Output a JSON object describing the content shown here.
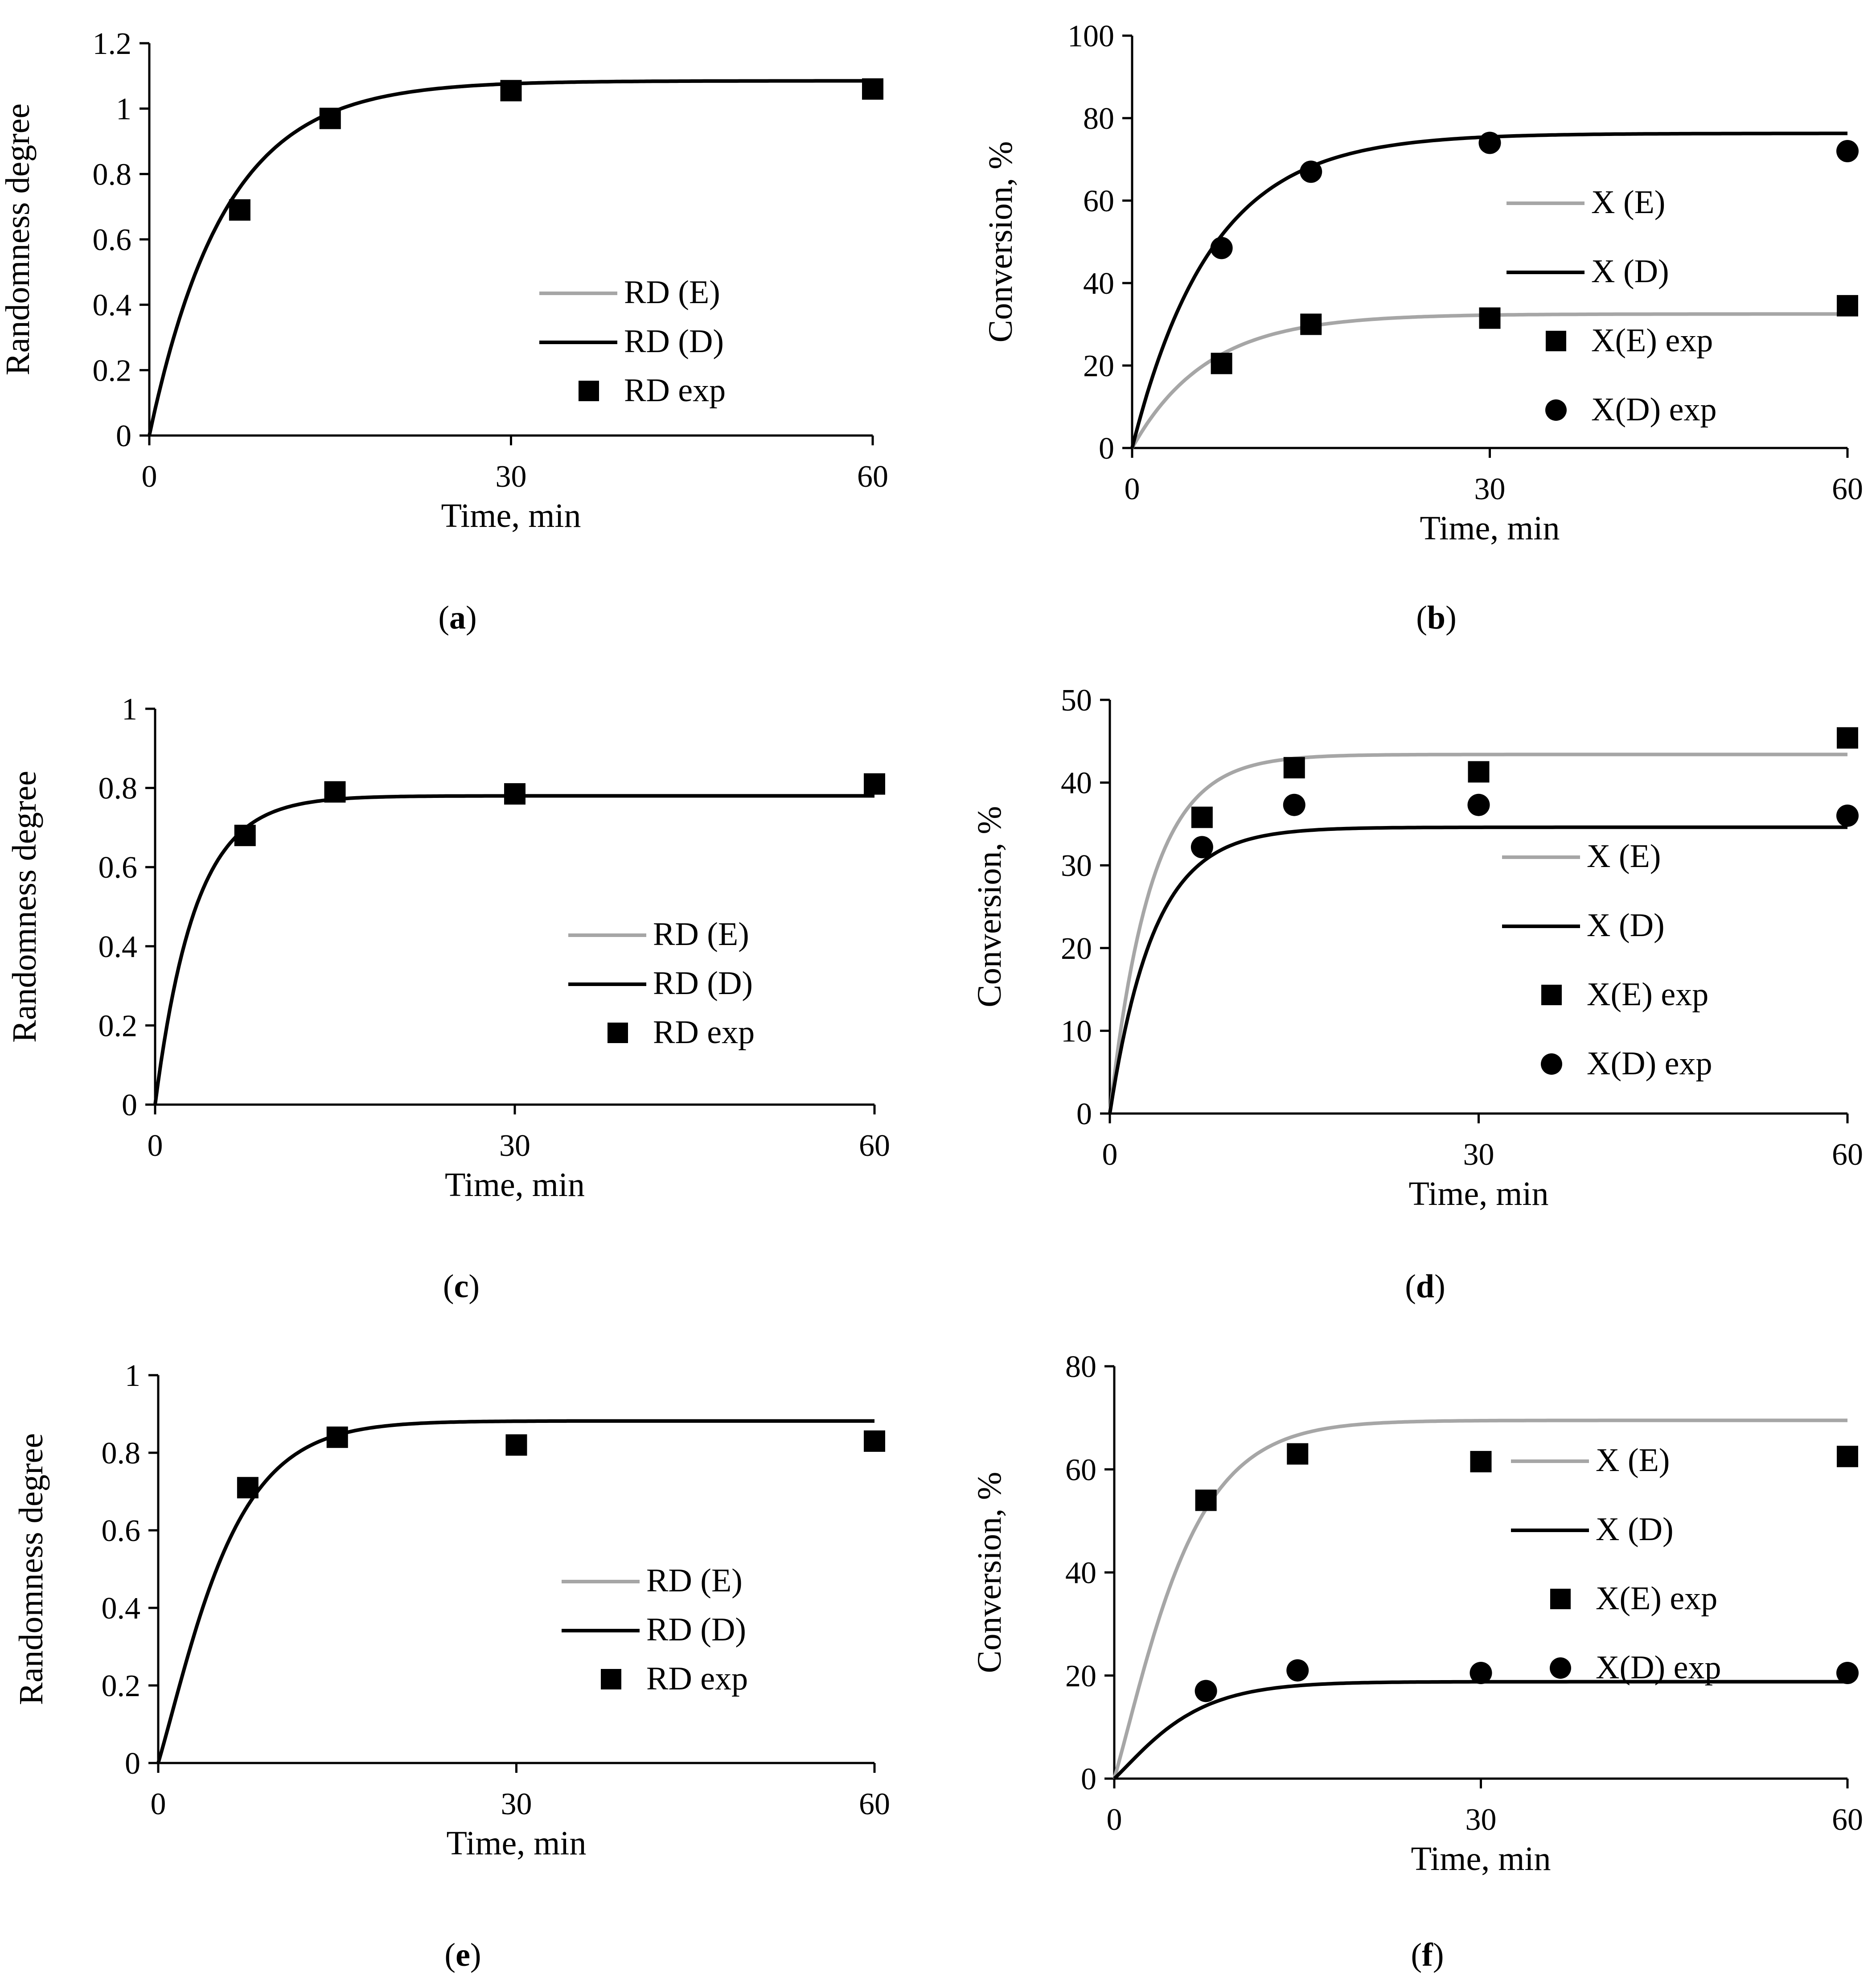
{
  "colors": {
    "black": "#000000",
    "gray": "#a6a6a6"
  },
  "chart_data": [
    {
      "id": "a",
      "type": "line",
      "panel_label": "a",
      "xlabel": "Time, min",
      "ylabel": "Randomness degree",
      "xlim": [
        0,
        60
      ],
      "ylim": [
        0,
        1.2
      ],
      "xticks": [
        "0",
        "30",
        "60"
      ],
      "yticks": [
        "0",
        "0.2",
        "0.4",
        "0.6",
        "0.8",
        "1",
        "1.2"
      ],
      "lines": [
        {
          "name": "RD (E)",
          "color": "#a6a6a6",
          "plateau": 1.085,
          "k": 0.16,
          "shape": "exp"
        },
        {
          "name": "RD (D)",
          "color": "#000000",
          "plateau": 1.085,
          "k": 0.16,
          "shape": "exp"
        }
      ],
      "points": [
        {
          "name": "RD exp",
          "marker": "square",
          "x": [
            7.5,
            15,
            30,
            60
          ],
          "y": [
            0.69,
            0.97,
            1.055,
            1.06
          ]
        }
      ],
      "legend": [
        "RD (E)",
        "RD (D)",
        "RD exp"
      ]
    },
    {
      "id": "b",
      "type": "line",
      "panel_label": "b",
      "xlabel": "Time, min",
      "ylabel": "Conversion, %",
      "xlim": [
        0,
        60
      ],
      "ylim": [
        0,
        100
      ],
      "xticks": [
        "0",
        "30",
        "60"
      ],
      "yticks": [
        "0",
        "20",
        "40",
        "60",
        "80",
        "100"
      ],
      "lines": [
        {
          "name": "X (E)",
          "color": "#a6a6a6",
          "plateau": 32.5,
          "k": 0.16,
          "shape": "exp"
        },
        {
          "name": "X (D)",
          "color": "#000000",
          "plateau": 76.3,
          "k": 0.15,
          "shape": "exp"
        }
      ],
      "points": [
        {
          "name": "X(E) exp",
          "marker": "square",
          "x": [
            7.5,
            15,
            30,
            60
          ],
          "y": [
            20.5,
            30,
            31.5,
            34.5
          ]
        },
        {
          "name": "X(D) exp",
          "marker": "circle",
          "x": [
            7.5,
            15,
            30,
            60
          ],
          "y": [
            48.5,
            67,
            74,
            72
          ]
        }
      ],
      "legend": [
        "X (E)",
        "X (D)",
        "X(E) exp",
        "X(D) exp"
      ]
    },
    {
      "id": "c",
      "type": "line",
      "panel_label": "c",
      "xlabel": "Time, min",
      "ylabel": "Randomness degree",
      "xlim": [
        0,
        60
      ],
      "ylim": [
        0,
        1
      ],
      "xticks": [
        "0",
        "30",
        "60"
      ],
      "yticks": [
        "0",
        "0.2",
        "0.4",
        "0.6",
        "0.8",
        "1"
      ],
      "lines": [
        {
          "name": "RD (E)",
          "color": "#a6a6a6",
          "plateau": 0.78,
          "k": 0.3,
          "shape": "exp"
        },
        {
          "name": "RD (D)",
          "color": "#000000",
          "plateau": 0.78,
          "k": 0.3,
          "shape": "exp"
        }
      ],
      "points": [
        {
          "name": "RD exp",
          "marker": "square",
          "x": [
            7.5,
            15,
            30,
            60
          ],
          "y": [
            0.68,
            0.79,
            0.785,
            0.81
          ]
        }
      ],
      "legend": [
        "RD (E)",
        "RD (D)",
        "RD exp"
      ]
    },
    {
      "id": "d",
      "type": "line",
      "panel_label": "d",
      "xlabel": "Time, min",
      "ylabel": "Conversion, %",
      "xlim": [
        0,
        60
      ],
      "ylim": [
        0,
        50
      ],
      "xticks": [
        "0",
        "30",
        "60"
      ],
      "yticks": [
        "0",
        "10",
        "20",
        "30",
        "40",
        "50"
      ],
      "lines": [
        {
          "name": "X (E)",
          "color": "#a6a6a6",
          "plateau": 43.4,
          "k": 0.3,
          "shape": "exp"
        },
        {
          "name": "X (D)",
          "color": "#000000",
          "plateau": 34.6,
          "k": 0.28,
          "shape": "exp"
        }
      ],
      "points": [
        {
          "name": "X(E) exp",
          "marker": "square",
          "x": [
            7.5,
            15,
            30,
            60
          ],
          "y": [
            35.8,
            41.8,
            41.3,
            45.4
          ]
        },
        {
          "name": "X(D) exp",
          "marker": "circle",
          "x": [
            7.5,
            15,
            30,
            60
          ],
          "y": [
            32.2,
            37.3,
            37.3,
            36
          ]
        }
      ],
      "legend": [
        "X (E)",
        "X (D)",
        "X(E) exp",
        "X(D) exp"
      ]
    },
    {
      "id": "e",
      "type": "line",
      "panel_label": "e",
      "xlabel": "Time, min",
      "ylabel": "Randomness degree",
      "xlim": [
        0,
        60
      ],
      "ylim": [
        0,
        1
      ],
      "xticks": [
        "0",
        "30",
        "60"
      ],
      "yticks": [
        "0",
        "0.2",
        "0.4",
        "0.6",
        "0.8",
        "1"
      ],
      "lines": [
        {
          "name": "RD (E)",
          "color": "#a6a6a6",
          "plateau": 0.882,
          "k": 0.3,
          "shape": "sigmoid"
        },
        {
          "name": "RD (D)",
          "color": "#000000",
          "plateau": 0.882,
          "k": 0.3,
          "shape": "sigmoid"
        }
      ],
      "points": [
        {
          "name": "RD exp",
          "marker": "square",
          "x": [
            7.5,
            15,
            30,
            60
          ],
          "y": [
            0.71,
            0.84,
            0.82,
            0.83
          ]
        }
      ],
      "legend": [
        "RD (E)",
        "RD (D)",
        "RD exp"
      ]
    },
    {
      "id": "f",
      "type": "line",
      "panel_label": "f",
      "xlabel": "Time, min",
      "ylabel": "Conversion, %",
      "xlim": [
        0,
        60
      ],
      "ylim": [
        0,
        80
      ],
      "xticks": [
        "0",
        "30",
        "60"
      ],
      "yticks": [
        "0",
        "20",
        "40",
        "60",
        "80"
      ],
      "lines": [
        {
          "name": "X (E)",
          "color": "#a6a6a6",
          "plateau": 69.5,
          "k": 0.3,
          "shape": "sigmoid"
        },
        {
          "name": "X (D)",
          "color": "#000000",
          "plateau": 18.8,
          "k": 0.3,
          "shape": "sigmoid"
        }
      ],
      "points": [
        {
          "name": "X(E) exp",
          "marker": "square",
          "x": [
            7.5,
            15,
            30,
            60
          ],
          "y": [
            54,
            63,
            61.5,
            62.5
          ]
        },
        {
          "name": "X(D) exp",
          "marker": "circle",
          "x": [
            7.5,
            15,
            30,
            60
          ],
          "y": [
            17,
            21,
            20.5,
            20.5
          ]
        }
      ],
      "legend": [
        "X (E)",
        "X (D)",
        "X(E) exp",
        "X(D) exp"
      ]
    }
  ]
}
